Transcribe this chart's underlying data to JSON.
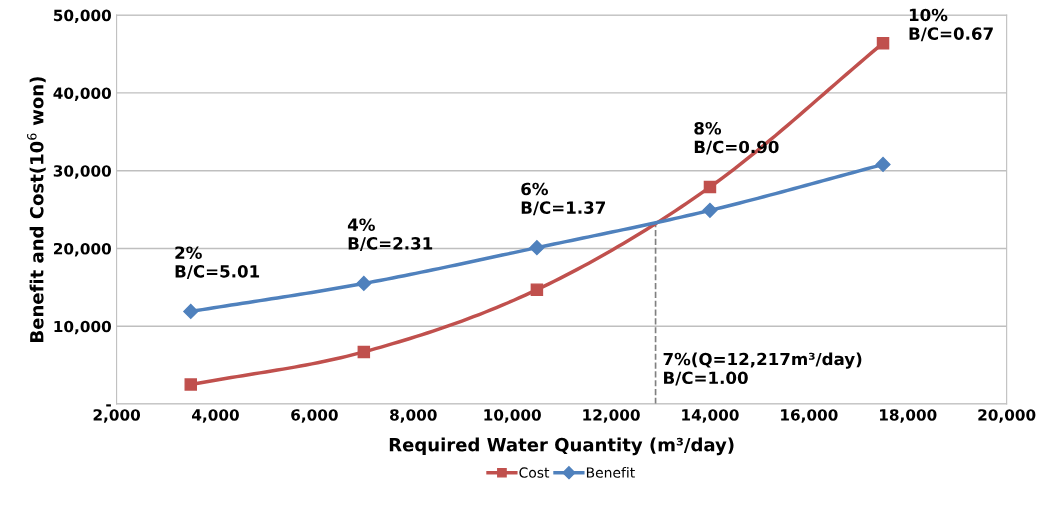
{
  "chart_data": {
    "type": "line",
    "xlabel": "Required Water Quantity (m³/day)",
    "ylabel": "Benefit and Cost(10$^{6}$ won)",
    "xlim": [
      2000,
      20000
    ],
    "xticks": [
      {
        "value": 2000,
        "label": "2,000"
      },
      {
        "value": 4000,
        "label": "4,000"
      },
      {
        "value": 6000,
        "label": "6,000"
      },
      {
        "value": 8000,
        "label": "8,000"
      },
      {
        "value": 10000,
        "label": "10,000"
      },
      {
        "value": 12000,
        "label": "12,000"
      },
      {
        "value": 14000,
        "label": "14,000"
      },
      {
        "value": 16000,
        "label": "16,000"
      },
      {
        "value": 18000,
        "label": "18,000"
      },
      {
        "value": 20000,
        "label": "20,000"
      }
    ],
    "ylim": [
      0,
      50000
    ],
    "yticks": [
      {
        "value": 0,
        "label": "-"
      },
      {
        "value": 10000,
        "label": "10,000"
      },
      {
        "value": 20000,
        "label": "20,000"
      },
      {
        "value": 30000,
        "label": "30,000"
      },
      {
        "value": 40000,
        "label": "40,000"
      },
      {
        "value": 50000,
        "label": "50,000"
      }
    ],
    "x": [
      3500,
      7000,
      10500,
      14000,
      17500
    ],
    "series": [
      {
        "name": "Cost",
        "color": "#c0504d",
        "marker": "square",
        "values": [
          2500,
          6700,
          14700,
          27900,
          46400
        ]
      },
      {
        "name": "Benefit",
        "color": "#4f81bd",
        "marker": "diamond",
        "values": [
          11900,
          15500,
          20100,
          24900,
          30800
        ]
      }
    ],
    "ref_lines": [
      {
        "axis": "x",
        "value": 12900,
        "color": "#808080",
        "line_style": "dashed"
      }
    ],
    "annotations": [
      {
        "text": "2%\nB/C=5.01",
        "x": 3500,
        "y": 11900
      },
      {
        "text": "4%\nB/C=2.31",
        "x": 7000,
        "y": 15500
      },
      {
        "text": "6%\nB/C=1.37",
        "x": 10500,
        "y": 20100
      },
      {
        "text": "8%\nB/C=0.90",
        "x": 14000,
        "y": 27900
      },
      {
        "text": "10%\nB/C=0.67",
        "x": 17500,
        "y": 46400
      },
      {
        "text": "7%(Q=12,217m³/day)\nB/C=1.00",
        "x": 12900,
        "y": 0
      }
    ],
    "grid": "y",
    "legend": "bottom",
    "line_style": "solid"
  }
}
